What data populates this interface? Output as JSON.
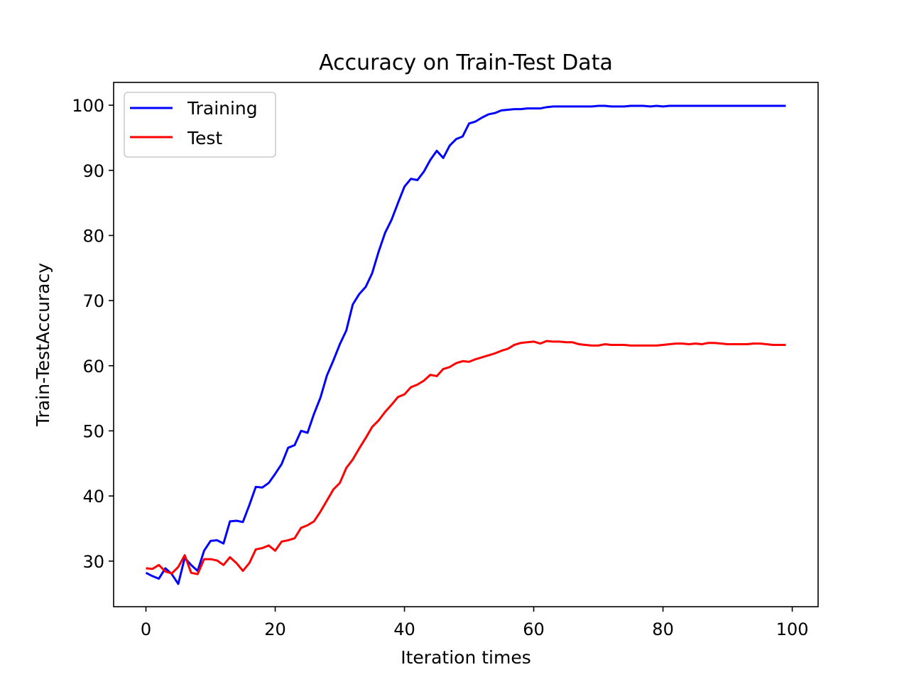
{
  "chart_data": {
    "type": "line",
    "title": "Accuracy on Train-Test Data",
    "xlabel": "Iteration times",
    "ylabel": "Train-TestAccuracy",
    "xlim": [
      -5,
      104
    ],
    "ylim": [
      23,
      103.5
    ],
    "xticks": [
      0,
      20,
      40,
      60,
      80,
      100
    ],
    "yticks": [
      30,
      40,
      50,
      60,
      70,
      80,
      90,
      100
    ],
    "legend_position": "top-left",
    "series": [
      {
        "name": "Training",
        "color": "#0000ff",
        "x": [
          0,
          1,
          2,
          3,
          4,
          5,
          6,
          7,
          8,
          9,
          10,
          11,
          12,
          13,
          14,
          15,
          16,
          17,
          18,
          19,
          20,
          21,
          22,
          23,
          24,
          25,
          26,
          27,
          28,
          29,
          30,
          31,
          32,
          33,
          34,
          35,
          36,
          37,
          38,
          39,
          40,
          41,
          42,
          43,
          44,
          45,
          46,
          47,
          48,
          49,
          50,
          51,
          52,
          53,
          54,
          55,
          56,
          57,
          58,
          59,
          60,
          61,
          62,
          63,
          64,
          65,
          66,
          67,
          68,
          69,
          70,
          71,
          72,
          73,
          74,
          75,
          76,
          77,
          78,
          79,
          80,
          81,
          82,
          83,
          84,
          85,
          86,
          87,
          88,
          89,
          90,
          91,
          92,
          93,
          94,
          95,
          96,
          97,
          98,
          99
        ],
        "values": [
          28.2,
          27.7,
          27.3,
          28.9,
          28.0,
          26.5,
          30.5,
          29.4,
          28.5,
          31.6,
          33.1,
          33.2,
          32.7,
          36.1,
          36.2,
          36.0,
          38.6,
          41.4,
          41.3,
          42.0,
          43.4,
          44.9,
          47.4,
          47.8,
          50.0,
          49.7,
          52.6,
          55.1,
          58.5,
          60.8,
          63.3,
          65.4,
          69.4,
          71.0,
          72.1,
          74.2,
          77.5,
          80.4,
          82.4,
          85.0,
          87.5,
          88.7,
          88.5,
          89.8,
          91.6,
          93.0,
          91.9,
          93.8,
          94.8,
          95.2,
          97.2,
          97.5,
          98.1,
          98.6,
          98.8,
          99.2,
          99.3,
          99.4,
          99.4,
          99.5,
          99.5,
          99.5,
          99.7,
          99.8,
          99.8,
          99.8,
          99.8,
          99.8,
          99.8,
          99.8,
          99.9,
          99.9,
          99.8,
          99.8,
          99.8,
          99.9,
          99.9,
          99.9,
          99.8,
          99.9,
          99.8,
          99.9,
          99.9,
          99.9,
          99.9,
          99.9,
          99.9,
          99.9,
          99.9,
          99.9,
          99.9,
          99.9,
          99.9,
          99.9,
          99.9,
          99.9,
          99.9,
          99.9,
          99.9,
          99.9
        ]
      },
      {
        "name": "Test",
        "color": "#ff0000",
        "x": [
          0,
          1,
          2,
          3,
          4,
          5,
          6,
          7,
          8,
          9,
          10,
          11,
          12,
          13,
          14,
          15,
          16,
          17,
          18,
          19,
          20,
          21,
          22,
          23,
          24,
          25,
          26,
          27,
          28,
          29,
          30,
          31,
          32,
          33,
          34,
          35,
          36,
          37,
          38,
          39,
          40,
          41,
          42,
          43,
          44,
          45,
          46,
          47,
          48,
          49,
          50,
          51,
          52,
          53,
          54,
          55,
          56,
          57,
          58,
          59,
          60,
          61,
          62,
          63,
          64,
          65,
          66,
          67,
          68,
          69,
          70,
          71,
          72,
          73,
          74,
          75,
          76,
          77,
          78,
          79,
          80,
          81,
          82,
          83,
          84,
          85,
          86,
          87,
          88,
          89,
          90,
          91,
          92,
          93,
          94,
          95,
          96,
          97,
          98,
          99
        ],
        "values": [
          28.9,
          28.8,
          29.4,
          28.4,
          28.1,
          29.1,
          30.9,
          28.2,
          28.0,
          30.3,
          30.3,
          30.1,
          29.4,
          30.6,
          29.7,
          28.5,
          29.7,
          31.8,
          32.0,
          32.4,
          31.6,
          33.0,
          33.2,
          33.5,
          35.1,
          35.5,
          36.1,
          37.6,
          39.3,
          41.0,
          42.0,
          44.3,
          45.6,
          47.3,
          48.9,
          50.6,
          51.6,
          52.9,
          54.0,
          55.2,
          55.6,
          56.7,
          57.1,
          57.7,
          58.6,
          58.4,
          59.5,
          59.8,
          60.4,
          60.7,
          60.6,
          61.0,
          61.3,
          61.6,
          61.9,
          62.3,
          62.6,
          63.2,
          63.5,
          63.6,
          63.7,
          63.4,
          63.8,
          63.7,
          63.7,
          63.6,
          63.6,
          63.3,
          63.2,
          63.1,
          63.1,
          63.3,
          63.2,
          63.2,
          63.2,
          63.1,
          63.1,
          63.1,
          63.1,
          63.1,
          63.2,
          63.3,
          63.4,
          63.4,
          63.3,
          63.4,
          63.3,
          63.5,
          63.5,
          63.4,
          63.3,
          63.3,
          63.3,
          63.3,
          63.4,
          63.4,
          63.3,
          63.2,
          63.2,
          63.2
        ]
      }
    ]
  }
}
